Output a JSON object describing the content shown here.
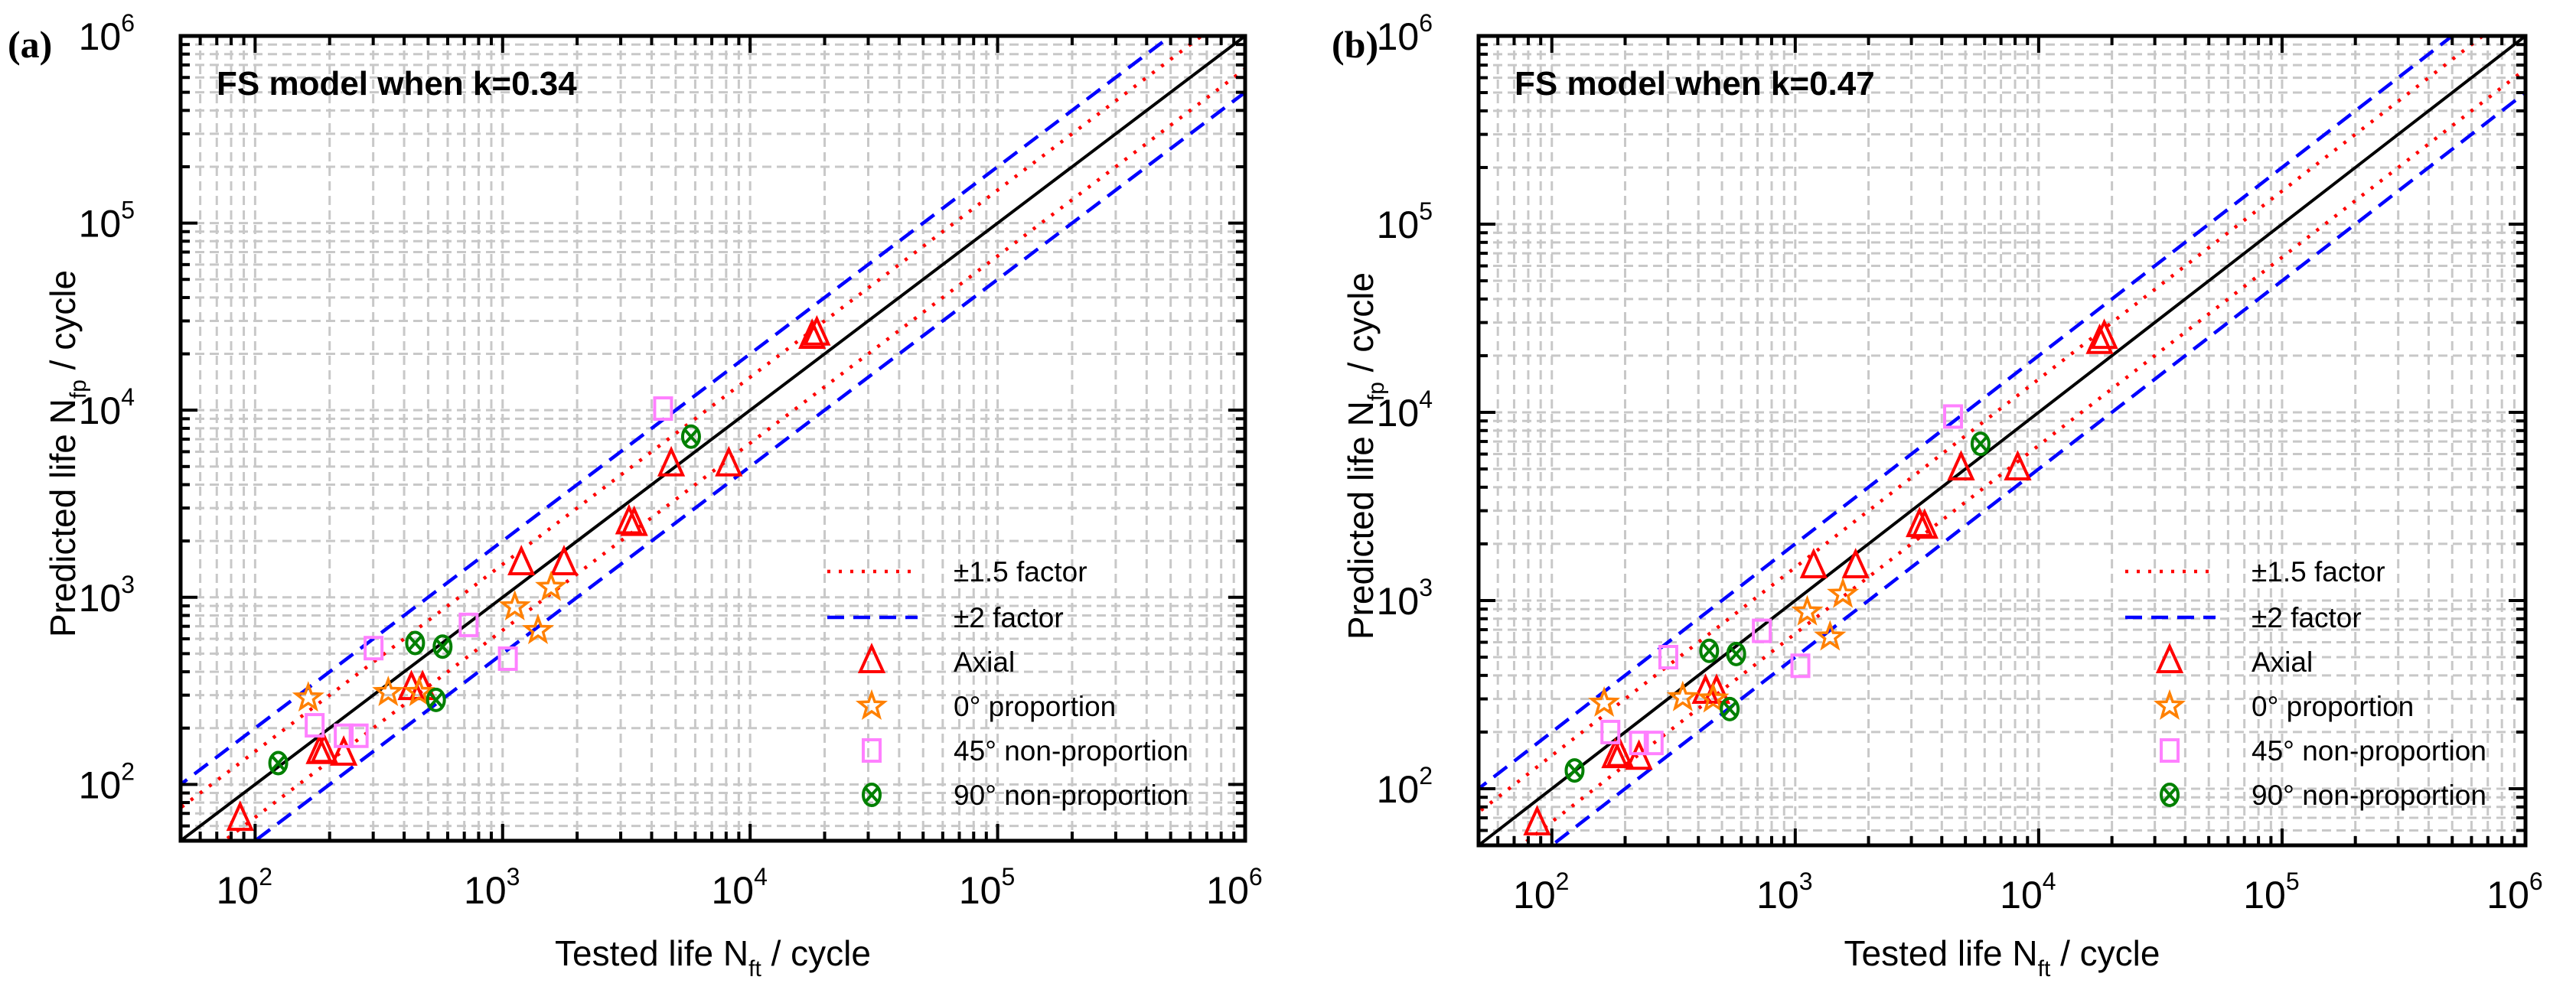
{
  "chart_data": [
    {
      "type": "scatter",
      "panel_label": "(a)",
      "title": "FS model when k=0.34",
      "xlabel": {
        "main": "Tested life N",
        "sub": "ft",
        "tail": " / cycle"
      },
      "ylabel": {
        "main": "Predicted life N",
        "sub": "fp",
        "tail": " / cycle"
      },
      "xscale": "log",
      "yscale": "log",
      "xlim": [
        50,
        1000000
      ],
      "ylim": [
        50,
        1000000
      ],
      "grid": true,
      "ticks": [
        {
          "base": "10",
          "exp": "2",
          "v": 100
        },
        {
          "base": "10",
          "exp": "3",
          "v": 1000
        },
        {
          "base": "10",
          "exp": "4",
          "v": 10000
        },
        {
          "base": "10",
          "exp": "5",
          "v": 100000
        },
        {
          "base": "10",
          "exp": "6",
          "v": 1000000
        }
      ],
      "legend_position": "bottom-right",
      "lines": [
        {
          "name": "±1.5 factor",
          "factor": 1.5,
          "color": "#ff0000",
          "style": "dotted"
        },
        {
          "name": "±2 factor",
          "factor": 2,
          "color": "#0000ff",
          "style": "dashed"
        },
        {
          "name": "",
          "factor": 1,
          "color": "#000000",
          "style": "solid"
        }
      ],
      "series": [
        {
          "name": "Axial",
          "marker": "triangle",
          "color": "#ff0000",
          "points": [
            [
              87,
              65
            ],
            [
              182,
              148
            ],
            [
              190,
              150
            ],
            [
              228,
              145
            ],
            [
              428,
              325
            ],
            [
              475,
              325
            ],
            [
              1190,
              1510
            ],
            [
              1770,
              1510
            ],
            [
              3240,
              2500
            ],
            [
              3400,
              2450
            ],
            [
              4800,
              5100
            ],
            [
              8200,
              5100
            ],
            [
              17800,
              24500
            ],
            [
              18600,
              25500
            ]
          ]
        },
        {
          "name": "0° proportion",
          "marker": "star",
          "color": "#ff8000",
          "points": [
            [
              164,
              290
            ],
            [
              345,
              310
            ],
            [
              460,
              310
            ],
            [
              1120,
              890
            ],
            [
              1570,
              1130
            ],
            [
              1390,
              665
            ]
          ]
        },
        {
          "name": "45° non-proportion",
          "marker": "square",
          "color": "#ff80ff",
          "points": [
            [
              174,
              207
            ],
            [
              228,
              182
            ],
            [
              262,
              182
            ],
            [
              301,
              535
            ],
            [
              729,
              712
            ],
            [
              1050,
              470
            ],
            [
              4450,
              10200
            ]
          ]
        },
        {
          "name": "90° non-proportion",
          "marker": "circle-x",
          "color": "#008000",
          "points": [
            [
              124,
              130
            ],
            [
              443,
              570
            ],
            [
              572,
              545
            ],
            [
              538,
              283
            ],
            [
              5770,
              7220
            ]
          ]
        }
      ]
    },
    {
      "type": "scatter",
      "panel_label": "(b)",
      "title": "FS model when k=0.47",
      "xlabel": {
        "main": "Tested life N",
        "sub": "ft",
        "tail": " / cycle"
      },
      "ylabel": {
        "main": "Predicted life N",
        "sub": "fp",
        "tail": " / cycle"
      },
      "xscale": "log",
      "yscale": "log",
      "xlim": [
        50,
        1000000
      ],
      "ylim": [
        50,
        1000000
      ],
      "grid": true,
      "ticks": [
        {
          "base": "10",
          "exp": "2",
          "v": 100
        },
        {
          "base": "10",
          "exp": "3",
          "v": 1000
        },
        {
          "base": "10",
          "exp": "4",
          "v": 10000
        },
        {
          "base": "10",
          "exp": "5",
          "v": 100000
        },
        {
          "base": "10",
          "exp": "6",
          "v": 1000000
        }
      ],
      "legend_position": "bottom-right",
      "lines": [
        {
          "name": "±1.5 factor",
          "factor": 1.5,
          "color": "#ff0000",
          "style": "dotted"
        },
        {
          "name": "±2 factor",
          "factor": 2,
          "color": "#0000ff",
          "style": "dashed"
        },
        {
          "name": "",
          "factor": 1,
          "color": "#000000",
          "style": "solid"
        }
      ],
      "series": [
        {
          "name": "Axial",
          "marker": "triangle",
          "color": "#ff0000",
          "points": [
            [
              87,
              65
            ],
            [
              182,
              148
            ],
            [
              190,
              150
            ],
            [
              228,
              145
            ],
            [
              428,
              325
            ],
            [
              475,
              325
            ],
            [
              1190,
              1510
            ],
            [
              1770,
              1510
            ],
            [
              3240,
              2500
            ],
            [
              3400,
              2450
            ],
            [
              4800,
              5000
            ],
            [
              8200,
              5000
            ],
            [
              17800,
              23500
            ],
            [
              18600,
              25000
            ]
          ]
        },
        {
          "name": "0° proportion",
          "marker": "star",
          "color": "#ff8000",
          "points": [
            [
              164,
              285
            ],
            [
              345,
              305
            ],
            [
              460,
              300
            ],
            [
              1120,
              870
            ],
            [
              1570,
              1080
            ],
            [
              1390,
              640
            ]
          ]
        },
        {
          "name": "45° non-proportion",
          "marker": "square",
          "color": "#ff80ff",
          "points": [
            [
              174,
              200
            ],
            [
              228,
              175
            ],
            [
              262,
              175
            ],
            [
              301,
              500
            ],
            [
              729,
              690
            ],
            [
              1050,
              450
            ],
            [
              4450,
              9500
            ]
          ]
        },
        {
          "name": "90° non-proportion",
          "marker": "circle-x",
          "color": "#008000",
          "points": [
            [
              124,
              125
            ],
            [
              443,
              540
            ],
            [
              572,
              520
            ],
            [
              538,
              265
            ],
            [
              5770,
              6800
            ]
          ]
        }
      ]
    }
  ]
}
